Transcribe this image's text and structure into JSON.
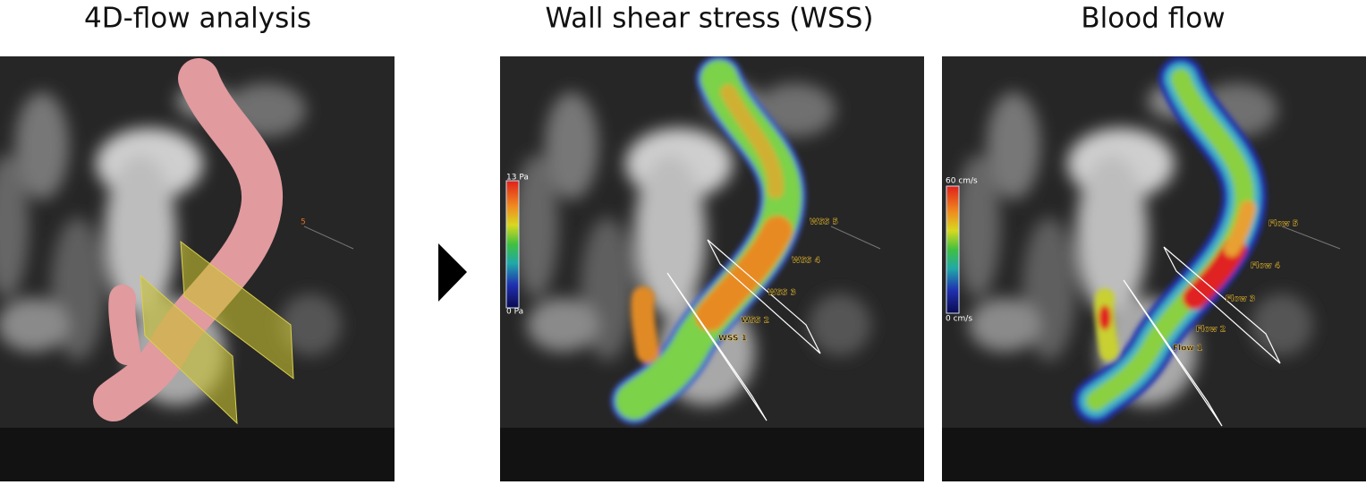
{
  "panels": [
    {
      "title": "4D-flow analysis",
      "labels": [
        "5"
      ]
    },
    {
      "title": "Wall shear stress (WSS)",
      "scale": {
        "max": "13 Pa",
        "min": "0 Pa"
      },
      "labels": [
        "WSS 1",
        "WSS 2",
        "WSS 3",
        "WSS 4",
        "WSS 5"
      ]
    },
    {
      "title": "Blood flow",
      "scale": {
        "max": "60 cm/s",
        "min": "0 cm/s"
      },
      "labels": [
        "Flow 1",
        "Flow 2",
        "Flow 3",
        "Flow 4",
        "Flow 5"
      ]
    }
  ]
}
